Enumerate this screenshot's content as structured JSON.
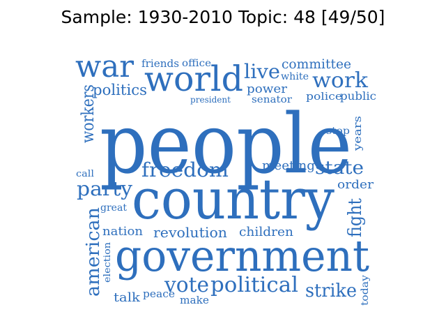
{
  "title": "Sample: 1930-2010 Topic: 48 [49/50]",
  "color": "#2e6fbd",
  "words": [
    {
      "text": "people"
    },
    {
      "text": "country"
    },
    {
      "text": "government"
    },
    {
      "text": "world"
    },
    {
      "text": "war"
    },
    {
      "text": "work"
    },
    {
      "text": "live"
    },
    {
      "text": "freedom"
    },
    {
      "text": "state"
    },
    {
      "text": "party"
    },
    {
      "text": "political"
    },
    {
      "text": "vote"
    },
    {
      "text": "strike"
    },
    {
      "text": "american"
    },
    {
      "text": "workers"
    },
    {
      "text": "fight"
    },
    {
      "text": "revolution"
    },
    {
      "text": "children"
    },
    {
      "text": "nation"
    },
    {
      "text": "meeting"
    },
    {
      "text": "committee"
    },
    {
      "text": "politics"
    },
    {
      "text": "power"
    },
    {
      "text": "senator"
    },
    {
      "text": "police"
    },
    {
      "text": "public"
    },
    {
      "text": "friends"
    },
    {
      "text": "office"
    },
    {
      "text": "white"
    },
    {
      "text": "president"
    },
    {
      "text": "years"
    },
    {
      "text": "stop"
    },
    {
      "text": "order"
    },
    {
      "text": "call"
    },
    {
      "text": "great"
    },
    {
      "text": "election"
    },
    {
      "text": "talk"
    },
    {
      "text": "peace"
    },
    {
      "text": "make"
    },
    {
      "text": "today"
    }
  ]
}
